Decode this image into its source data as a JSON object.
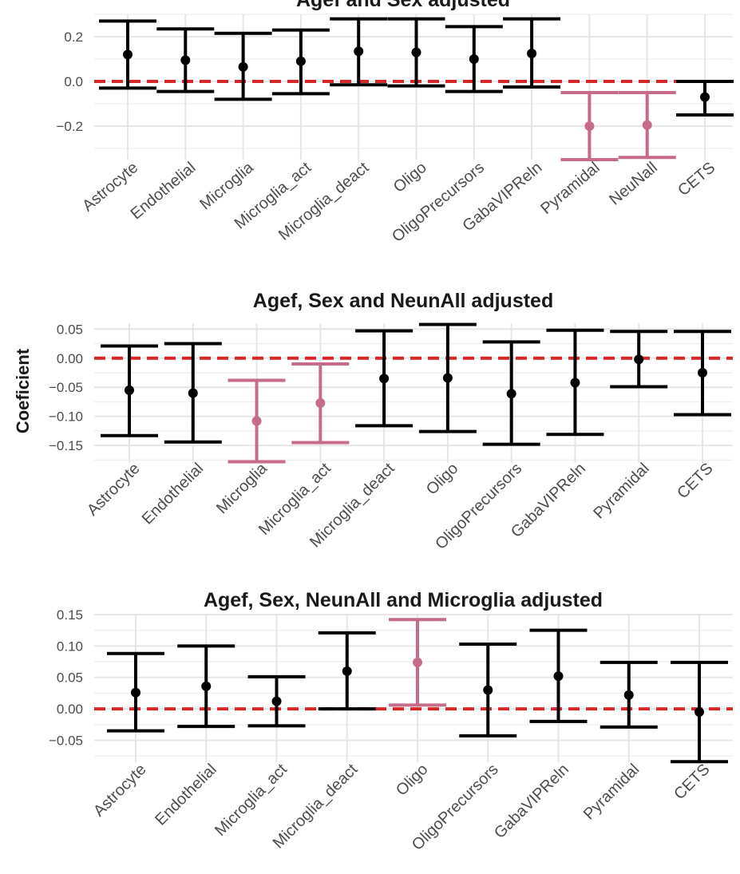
{
  "figure": {
    "y_axis_label": "Coeficient"
  },
  "colors": {
    "normal": "#000000",
    "significant": "#c76b8a",
    "zero_line": "#d62728",
    "grid": "#e6e6e6",
    "text": "#4d4d4d"
  },
  "chart_data": [
    {
      "type": "errorbar",
      "title": "Agef and Sex adjusted",
      "ylim": [
        -0.35,
        0.3
      ],
      "yticks": [
        -0.2,
        0.0,
        0.2
      ],
      "ytick_labels": [
        "−0.2",
        "0.0",
        "0.2"
      ],
      "zero_line": 0,
      "points": [
        {
          "category": "Astrocyte",
          "estimate": 0.12,
          "low": -0.03,
          "high": 0.27,
          "significant": false
        },
        {
          "category": "Endothelial",
          "estimate": 0.095,
          "low": -0.045,
          "high": 0.235,
          "significant": false
        },
        {
          "category": "Microglia",
          "estimate": 0.065,
          "low": -0.08,
          "high": 0.215,
          "significant": false
        },
        {
          "category": "Microglia_act",
          "estimate": 0.09,
          "low": -0.055,
          "high": 0.23,
          "significant": false
        },
        {
          "category": "Microglia_deact",
          "estimate": 0.135,
          "low": -0.015,
          "high": 0.28,
          "significant": false
        },
        {
          "category": "Oligo",
          "estimate": 0.13,
          "low": -0.02,
          "high": 0.28,
          "significant": false
        },
        {
          "category": "OligoPrecursors",
          "estimate": 0.1,
          "low": -0.045,
          "high": 0.245,
          "significant": false
        },
        {
          "category": "GabaVIPReln",
          "estimate": 0.125,
          "low": -0.025,
          "high": 0.28,
          "significant": false
        },
        {
          "category": "Pyramidal",
          "estimate": -0.2,
          "low": -0.35,
          "high": -0.05,
          "significant": true
        },
        {
          "category": "NeuNall",
          "estimate": -0.195,
          "low": -0.34,
          "high": -0.05,
          "significant": true
        },
        {
          "category": "CETS",
          "estimate": -0.07,
          "low": -0.15,
          "high": 0.0,
          "significant": false
        }
      ]
    },
    {
      "type": "errorbar",
      "title": "Agef, Sex and NeunAll adjusted",
      "ylim": [
        -0.18,
        0.06
      ],
      "yticks": [
        -0.15,
        -0.1,
        -0.05,
        0.0,
        0.05
      ],
      "ytick_labels": [
        "−0.15",
        "−0.10",
        "−0.05",
        "0.00",
        "0.05"
      ],
      "zero_line": 0,
      "points": [
        {
          "category": "Astrocyte",
          "estimate": -0.055,
          "low": -0.133,
          "high": 0.021,
          "significant": false
        },
        {
          "category": "Endothelial",
          "estimate": -0.06,
          "low": -0.144,
          "high": 0.025,
          "significant": false
        },
        {
          "category": "Microglia",
          "estimate": -0.108,
          "low": -0.178,
          "high": -0.038,
          "significant": true
        },
        {
          "category": "Microglia_act",
          "estimate": -0.077,
          "low": -0.145,
          "high": -0.01,
          "significant": true
        },
        {
          "category": "Microglia_deact",
          "estimate": -0.035,
          "low": -0.116,
          "high": 0.047,
          "significant": false
        },
        {
          "category": "Oligo",
          "estimate": -0.034,
          "low": -0.126,
          "high": 0.058,
          "significant": false
        },
        {
          "category": "OligoPrecursors",
          "estimate": -0.061,
          "low": -0.148,
          "high": 0.028,
          "significant": false
        },
        {
          "category": "GabaVIPReln",
          "estimate": -0.042,
          "low": -0.131,
          "high": 0.048,
          "significant": false
        },
        {
          "category": "Pyramidal",
          "estimate": -0.002,
          "low": -0.049,
          "high": 0.046,
          "significant": false
        },
        {
          "category": "CETS",
          "estimate": -0.025,
          "low": -0.097,
          "high": 0.046,
          "significant": false
        }
      ]
    },
    {
      "type": "errorbar",
      "title": "Agef, Sex, NeunAll and Microglia adjusted",
      "ylim": [
        -0.085,
        0.15
      ],
      "yticks": [
        -0.05,
        0.0,
        0.05,
        0.1,
        0.15
      ],
      "ytick_labels": [
        "−0.05",
        "0.00",
        "0.05",
        "0.10",
        "0.15"
      ],
      "zero_line": 0,
      "points": [
        {
          "category": "Astrocyte",
          "estimate": 0.026,
          "low": -0.035,
          "high": 0.088,
          "significant": false
        },
        {
          "category": "Endothelial",
          "estimate": 0.036,
          "low": -0.028,
          "high": 0.1,
          "significant": false
        },
        {
          "category": "Microglia_act",
          "estimate": 0.012,
          "low": -0.027,
          "high": 0.051,
          "significant": false
        },
        {
          "category": "Microglia_deact",
          "estimate": 0.06,
          "low": 0.0,
          "high": 0.121,
          "significant": false
        },
        {
          "category": "Oligo",
          "estimate": 0.074,
          "low": 0.006,
          "high": 0.142,
          "significant": true
        },
        {
          "category": "OligoPrecursors",
          "estimate": 0.03,
          "low": -0.043,
          "high": 0.103,
          "significant": false
        },
        {
          "category": "GabaVIPReln",
          "estimate": 0.052,
          "low": -0.02,
          "high": 0.125,
          "significant": false
        },
        {
          "category": "Pyramidal",
          "estimate": 0.022,
          "low": -0.029,
          "high": 0.074,
          "significant": false
        },
        {
          "category": "CETS",
          "estimate": -0.005,
          "low": -0.084,
          "high": 0.074,
          "significant": false
        }
      ]
    }
  ]
}
